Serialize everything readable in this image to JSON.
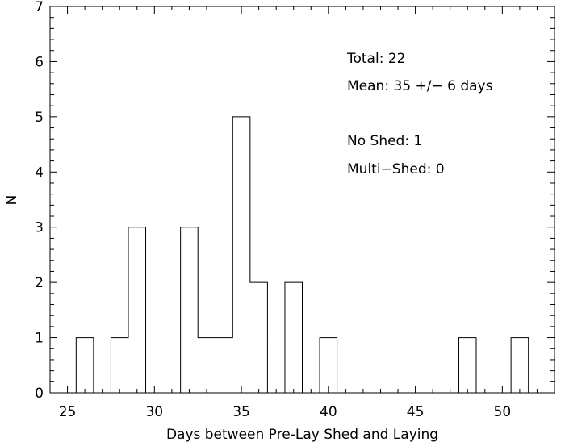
{
  "chart_data": {
    "type": "bar",
    "style": "step-histogram",
    "xlabel": "Days between Pre-Lay Shed and Laying",
    "ylabel": "N",
    "xlim": [
      24,
      53
    ],
    "ylim": [
      0,
      7
    ],
    "x_ticks": [
      25,
      30,
      35,
      40,
      45,
      50
    ],
    "y_ticks": [
      0,
      1,
      2,
      3,
      4,
      5,
      6,
      7
    ],
    "grid": false,
    "bin_width": 1,
    "bins": [
      {
        "x": 26,
        "count": 1
      },
      {
        "x": 27,
        "count": 0
      },
      {
        "x": 28,
        "count": 1
      },
      {
        "x": 29,
        "count": 3
      },
      {
        "x": 30,
        "count": 0
      },
      {
        "x": 31,
        "count": 0
      },
      {
        "x": 32,
        "count": 3
      },
      {
        "x": 33,
        "count": 1
      },
      {
        "x": 34,
        "count": 1
      },
      {
        "x": 35,
        "count": 5
      },
      {
        "x": 36,
        "count": 2
      },
      {
        "x": 37,
        "count": 0
      },
      {
        "x": 38,
        "count": 2
      },
      {
        "x": 39,
        "count": 0
      },
      {
        "x": 40,
        "count": 1
      },
      {
        "x": 41,
        "count": 0
      },
      {
        "x": 42,
        "count": 0
      },
      {
        "x": 43,
        "count": 0
      },
      {
        "x": 44,
        "count": 0
      },
      {
        "x": 45,
        "count": 0
      },
      {
        "x": 46,
        "count": 0
      },
      {
        "x": 47,
        "count": 0
      },
      {
        "x": 48,
        "count": 1
      },
      {
        "x": 49,
        "count": 0
      },
      {
        "x": 50,
        "count": 0
      },
      {
        "x": 51,
        "count": 1
      }
    ],
    "annotations": [
      "Total: 22",
      "Mean: 35 +/− 6 days",
      "No Shed: 1",
      "Multi−Shed: 0"
    ],
    "line_color": "#000000"
  }
}
